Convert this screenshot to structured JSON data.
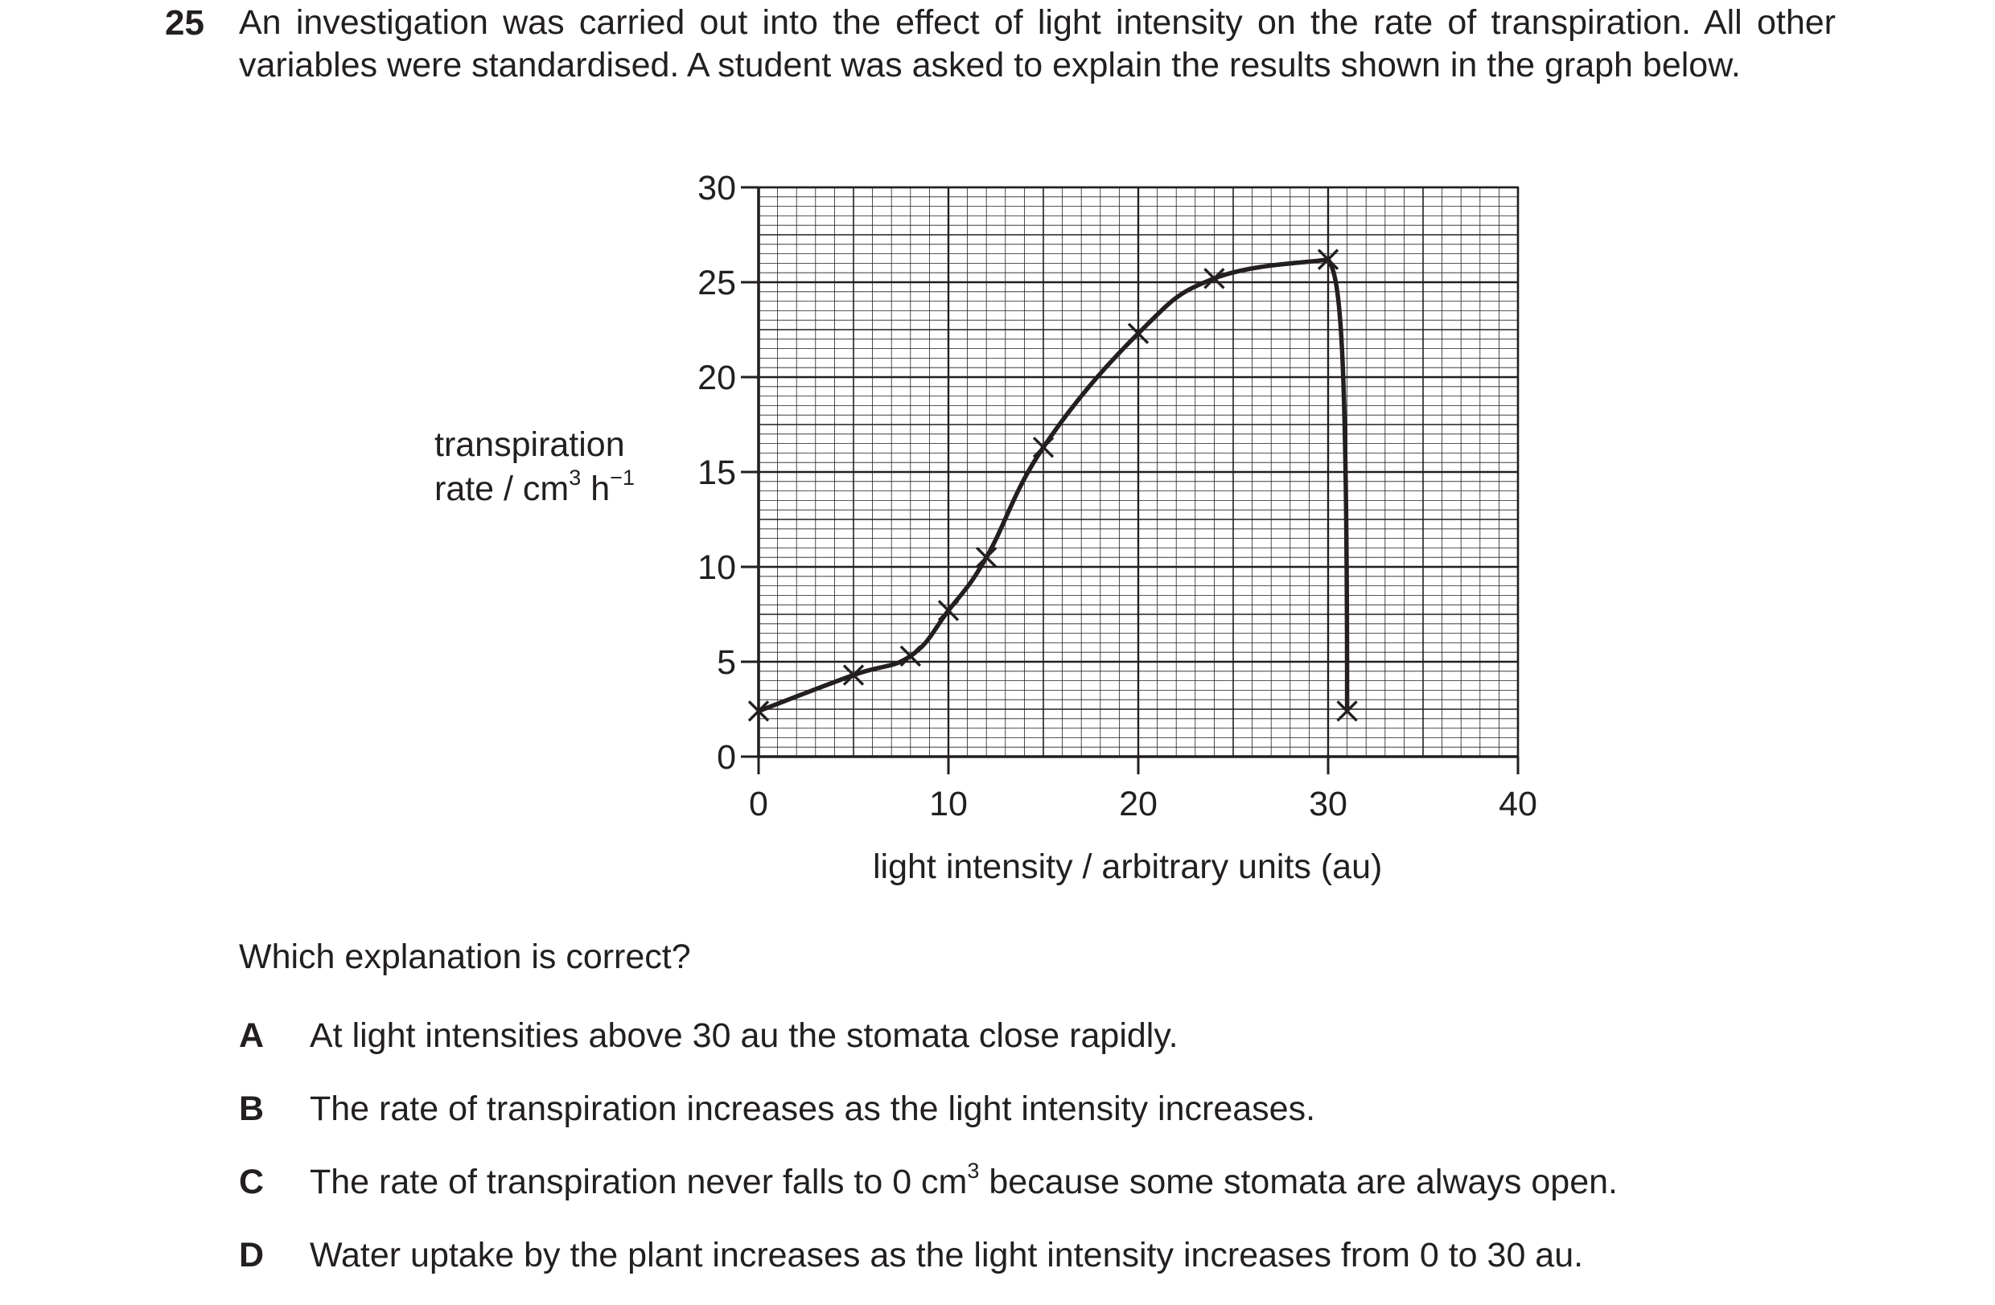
{
  "question": {
    "number": "25",
    "stem": "An investigation was carried out into the effect of light intensity on the rate of transpiration. All other variables were standardised. A student was asked to explain the results shown in the graph below.",
    "prompt": "Which explanation is correct?"
  },
  "chart_data": {
    "type": "line",
    "xlabel": "light intensity / arbitrary units (au)",
    "ylabel": "transpiration rate / cm3 h−1",
    "ylabel_parts": {
      "line1": "transpiration",
      "base": "rate / cm",
      "sup1": "3",
      "mid": " h",
      "sup2": "−1"
    },
    "xlim": [
      0,
      40
    ],
    "ylim": [
      0,
      30
    ],
    "x_ticks": [
      0,
      10,
      20,
      30,
      40
    ],
    "y_ticks": [
      0,
      5,
      10,
      15,
      20,
      25,
      30
    ],
    "x_tick_labels": [
      "0",
      "10",
      "20",
      "30",
      "40"
    ],
    "y_tick_labels": [
      "0",
      "5",
      "10",
      "15",
      "20",
      "25",
      "30"
    ],
    "grid": true,
    "marker": "x",
    "series": [
      {
        "x": [
          0,
          5,
          8,
          10,
          12,
          15,
          20,
          24,
          30,
          31
        ],
        "y": [
          2.4,
          4.3,
          5.3,
          7.7,
          10.5,
          16.3,
          22.3,
          25.2,
          26.2,
          2.4
        ]
      }
    ]
  },
  "options": [
    {
      "letter": "A",
      "text": "At light intensities above 30 au the stomata close rapidly."
    },
    {
      "letter": "B",
      "text": "The rate of transpiration increases as the light intensity increases."
    },
    {
      "letter": "C",
      "text_before": "The rate of transpiration never falls to 0 cm",
      "sup": "3",
      "text_after": " because some stomata are always open."
    },
    {
      "letter": "D",
      "text": "Water uptake by the plant increases as the light intensity increases from 0 to 30 au."
    }
  ]
}
